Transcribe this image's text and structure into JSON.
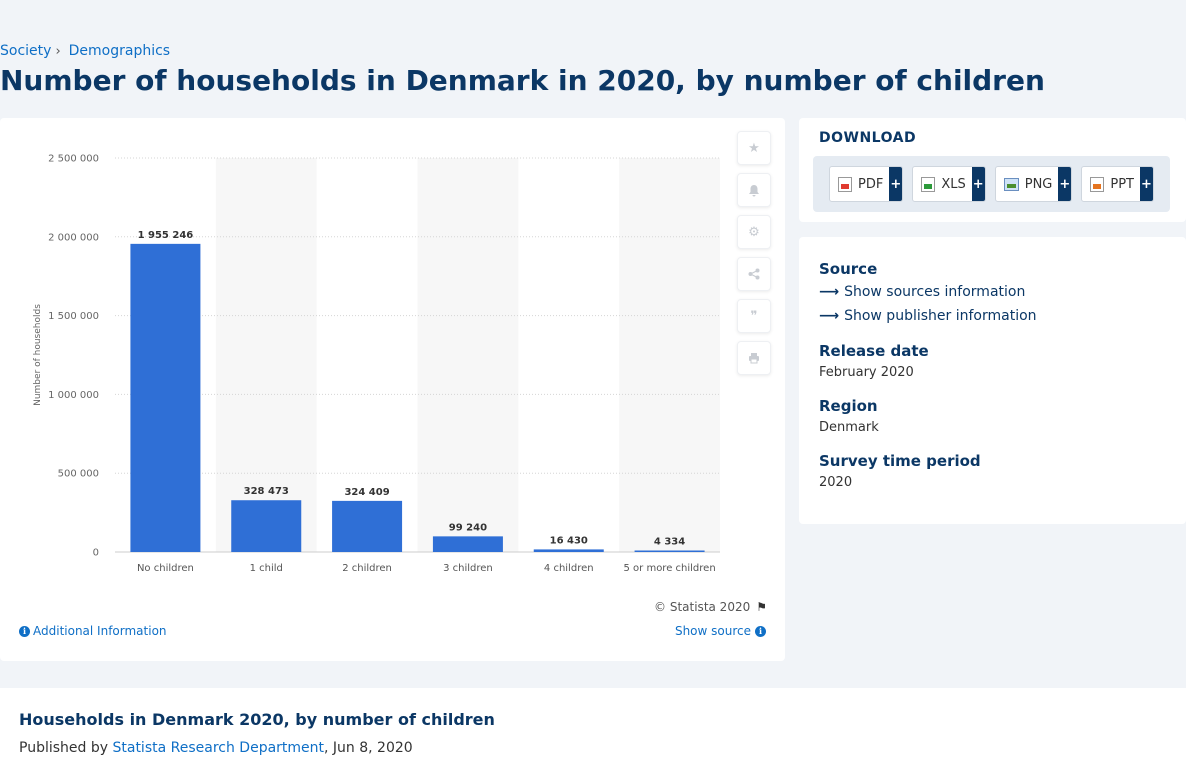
{
  "breadcrumb": {
    "items": [
      "Society",
      "Demographics"
    ],
    "separator": "›"
  },
  "page_title": "Number of households in Denmark in 2020, by number of children",
  "chart_data": {
    "type": "bar",
    "categories": [
      "No children",
      "1 child",
      "2 children",
      "3 children",
      "4 children",
      "5 or more children"
    ],
    "values": [
      1955246,
      328473,
      324409,
      99240,
      16430,
      4334
    ],
    "value_labels": [
      "1 955 246",
      "328 473",
      "324 409",
      "99 240",
      "16 430",
      "4 334"
    ],
    "title": "",
    "xlabel": "",
    "ylabel": "Number of households",
    "ylim": [
      0,
      2500000
    ],
    "yticks": [
      0,
      500000,
      1000000,
      1500000,
      2000000,
      2500000
    ],
    "ytick_labels": [
      "0",
      "500 000",
      "1 000 000",
      "1 500 000",
      "2 000 000",
      "2 500 000"
    ],
    "grid": true,
    "bar_color": "#2f6fd6"
  },
  "chart_tools": [
    "star-icon",
    "bell-icon",
    "gear-icon",
    "share-icon",
    "quote-icon",
    "print-icon"
  ],
  "copyright": "© Statista 2020",
  "additional_info": "Additional Information",
  "show_source": "Show source",
  "download": {
    "title": "DOWNLOAD",
    "formats": [
      "PDF",
      "XLS",
      "PNG",
      "PPT"
    ],
    "plus": "+"
  },
  "source_panel": {
    "source_heading": "Source",
    "show_sources": "Show sources information",
    "show_publisher": "Show publisher information",
    "release_heading": "Release date",
    "release_value": "February 2020",
    "region_heading": "Region",
    "region_value": "Denmark",
    "period_heading": "Survey time period",
    "period_value": "2020"
  },
  "bottom": {
    "title": "Households in Denmark 2020, by number of children",
    "published_prefix": "Published by",
    "publisher": "Statista Research Department",
    "date": ", Jun 8, 2020"
  },
  "colors": {
    "accent": "#0f6fc6",
    "heading": "#0b3765",
    "bar": "#2f6fd6"
  }
}
